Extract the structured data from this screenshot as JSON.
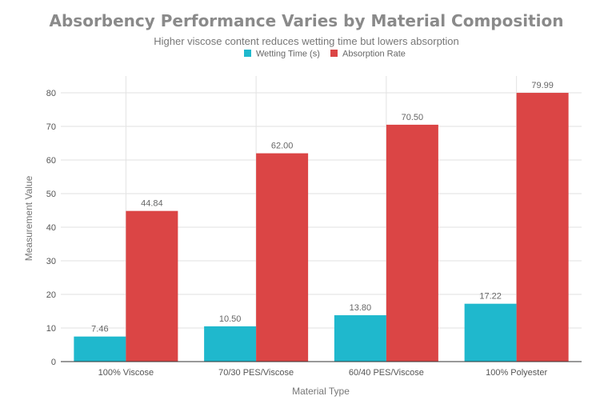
{
  "chart_data": {
    "type": "bar",
    "title": "Absorbency Performance Varies by Material Composition",
    "subtitle": "Higher viscose content reduces wetting time but lowers absorption",
    "xlabel": "Material Type",
    "ylabel": "Measurement Value",
    "categories": [
      "100% Viscose",
      "70/30 PES/Viscose",
      "60/40 PES/Viscose",
      "100% Polyester"
    ],
    "series": [
      {
        "name": "Wetting Time (s)",
        "color": "#1fb8cd",
        "values": [
          7.46,
          10.5,
          13.8,
          17.22
        ],
        "labels": [
          "7.46",
          "10.50",
          "13.80",
          "17.22"
        ]
      },
      {
        "name": "Absorption Rate",
        "color": "#db4545",
        "values": [
          44.84,
          62.0,
          70.5,
          79.99
        ],
        "labels": [
          "44.84",
          "62.00",
          "70.50",
          "79.99"
        ]
      }
    ],
    "ylim": [
      0,
      85
    ],
    "yticks": [
      0,
      10,
      20,
      30,
      40,
      50,
      60,
      70,
      80
    ],
    "ytick_labels": [
      "0",
      "10",
      "20",
      "30",
      "40",
      "50",
      "60",
      "70",
      "80"
    ],
    "grid": true,
    "legend_position": "top-center"
  }
}
